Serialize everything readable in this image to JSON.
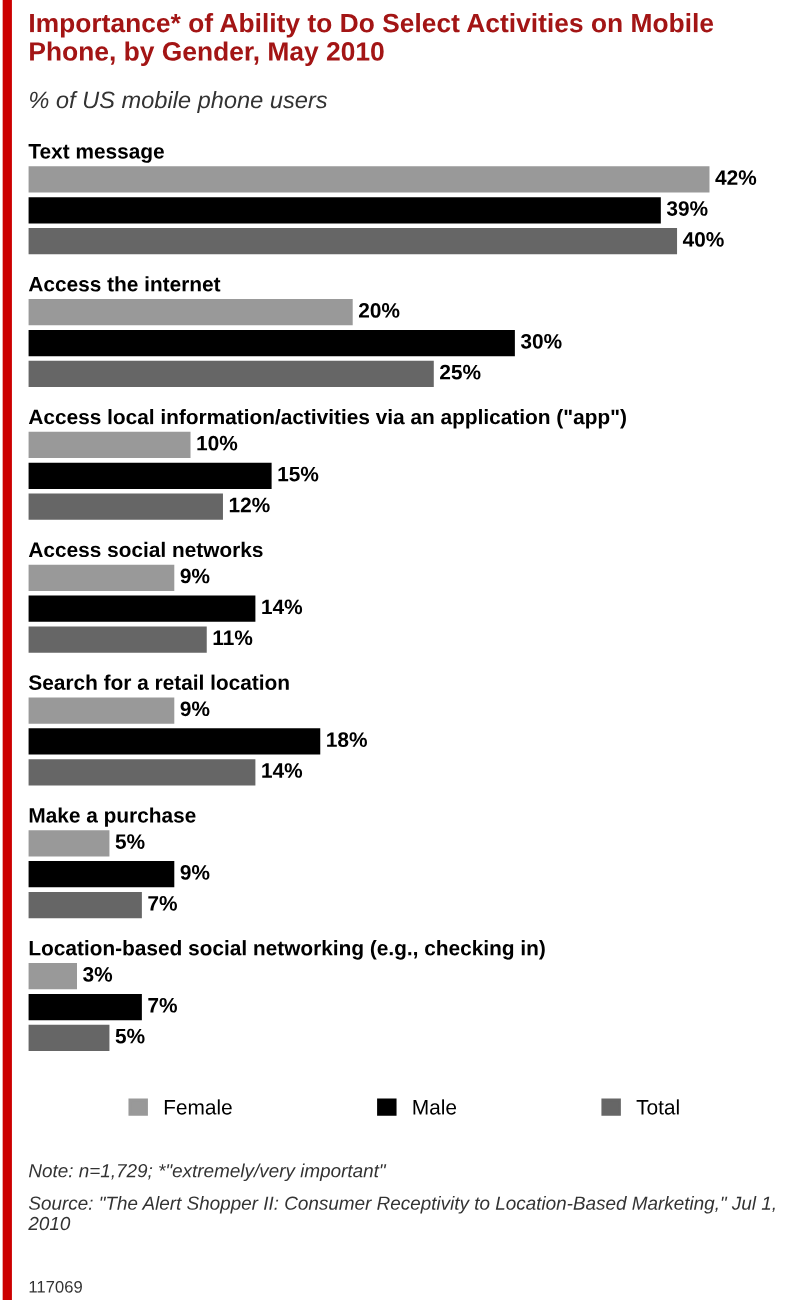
{
  "chart_data": {
    "type": "bar",
    "orientation": "horizontal",
    "title": "Importance* of Ability to Do Select Activities on Mobile Phone, by Gender, May 2010",
    "subtitle": "% of US mobile phone users",
    "categories": [
      "Text message",
      "Access the internet",
      "Access local information/activities via an application (\"app\")",
      "Access social networks",
      "Search for a retail location",
      "Make a purchase",
      "Location-based social networking (e.g., checking in)"
    ],
    "series": [
      {
        "name": "Female",
        "color": "#999999",
        "values": [
          42,
          20,
          10,
          9,
          9,
          5,
          3
        ],
        "value_labels": [
          "42%",
          "20%",
          "10%",
          "9%",
          "9%",
          "5%",
          "3%"
        ]
      },
      {
        "name": "Male",
        "color": "#000000",
        "values": [
          39,
          30,
          15,
          14,
          18,
          9,
          7
        ],
        "value_labels": [
          "39%",
          "30%",
          "15%",
          "14%",
          "18%",
          "9%",
          "7%"
        ]
      },
      {
        "name": "Total",
        "color": "#666666",
        "values": [
          40,
          25,
          12,
          11,
          14,
          7,
          5
        ],
        "value_labels": [
          "40%",
          "25%",
          "12%",
          "11%",
          "14%",
          "7%",
          "5%"
        ]
      }
    ],
    "legend": "bottom",
    "annotations": [
      "Note: n=1,729; *\"extremely/very important\"",
      "Source: \"The Alert Shopper II: Consumer Receptivity to Location-Based Marketing,\" Jul 1, 2010",
      "117069"
    ]
  }
}
